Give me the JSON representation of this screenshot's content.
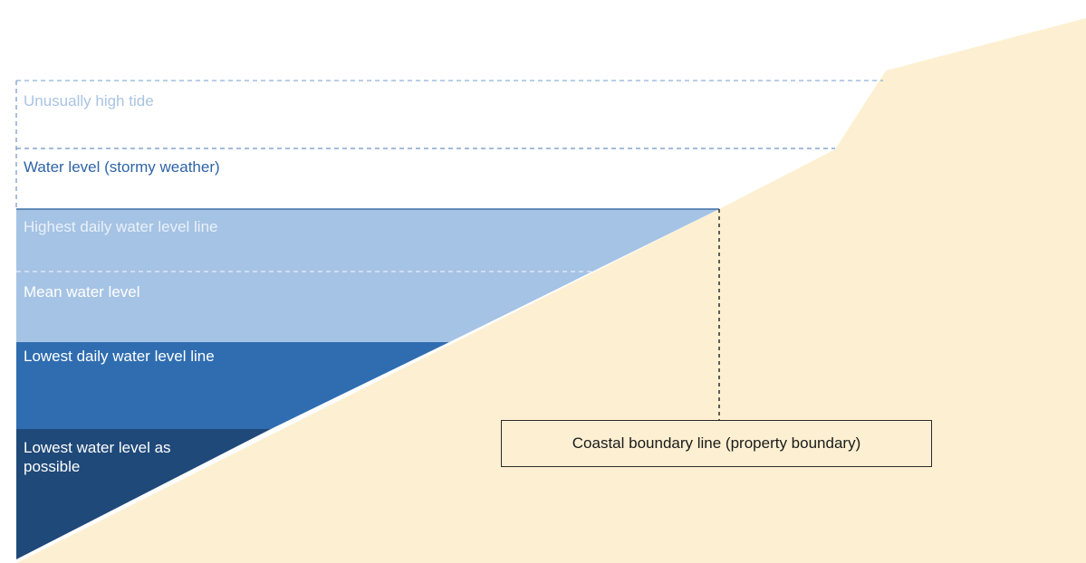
{
  "labels": {
    "unusually_high_tide": "Unusually high tide",
    "water_level_stormy": "Water level (stormy weather)",
    "highest_daily": "Highest daily water level line",
    "mean_water": "Mean water level",
    "lowest_daily": "Lowest daily water level line",
    "lowest_possible": "Lowest water level as possible",
    "coastal_boundary": "Coastal boundary line (property boundary)"
  },
  "colors": {
    "land": "#fdf0d2",
    "water_light": "#a5c3e4",
    "water_mid": "#2f6db0",
    "water_dark": "#1f4979",
    "dashed_line": "#7fa3cc",
    "text_faint": "#a9c4e2",
    "text_blue": "#2e64a6",
    "text_white": "#ffffff"
  }
}
